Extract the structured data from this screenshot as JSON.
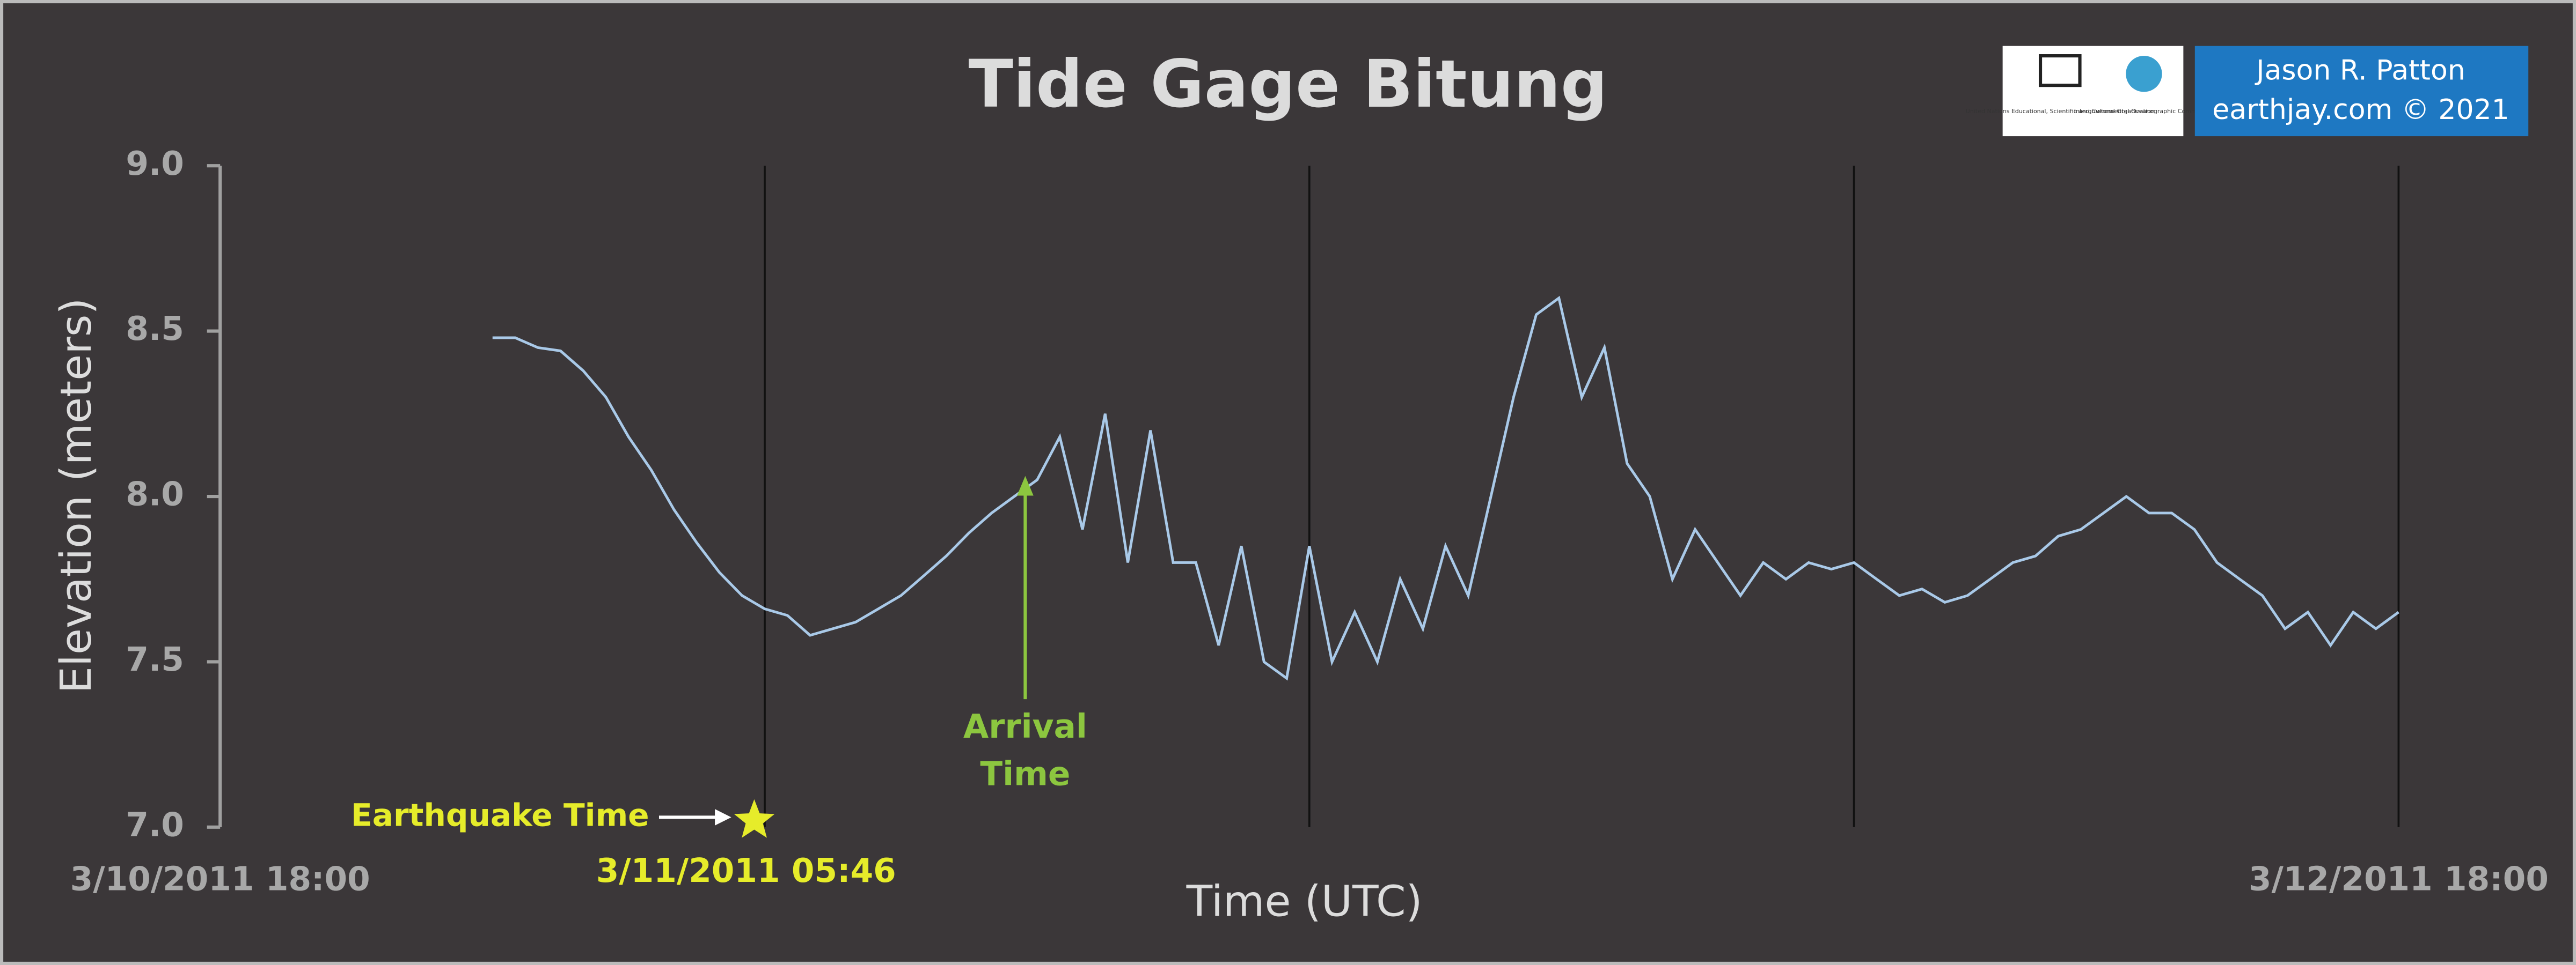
{
  "chart_data": {
    "type": "line",
    "title": "Tide Gage Bitung",
    "x_label": "Time (UTC)",
    "y_label": "Elevation (meters)",
    "xlim": [
      0,
      48
    ],
    "xticks": [
      {
        "value": 0,
        "label": "3/10/2011 18:00"
      },
      {
        "value": 48,
        "label": "3/12/2011 18:00"
      }
    ],
    "x_gridlines": [
      12,
      24,
      36,
      48
    ],
    "ylim": [
      7,
      9
    ],
    "yticks": [
      {
        "value": 9,
        "label": "9.0"
      },
      {
        "value": 8.5,
        "label": "8.5"
      },
      {
        "value": 8,
        "label": "8.0"
      },
      {
        "value": 7.5,
        "label": "7.5"
      },
      {
        "value": 7,
        "label": "7.0"
      }
    ],
    "color": "#a9c9e8",
    "x": [
      6,
      6.5,
      7,
      7.5,
      8,
      8.5,
      9,
      9.5,
      10,
      10.5,
      11,
      11.5,
      12,
      12.5,
      13,
      13.5,
      14,
      14.5,
      15,
      15.5,
      16,
      16.5,
      17,
      17.5,
      18,
      18.5,
      19,
      19.5,
      20,
      20.5,
      21,
      21.5,
      22,
      22.5,
      23,
      23.5,
      24,
      24.5,
      25,
      25.5,
      26,
      26.5,
      27,
      27.5,
      28,
      28.5,
      29,
      29.5,
      30,
      30.5,
      31,
      31.5,
      32,
      32.5,
      33,
      33.5,
      34,
      34.5,
      35,
      35.5,
      36,
      36.5,
      37,
      37.5,
      38,
      38.5,
      39,
      39.5,
      40,
      40.5,
      41,
      41.5,
      42,
      42.5,
      43,
      43.5,
      44,
      44.5,
      45,
      45.5,
      46,
      46.5,
      47,
      47.5,
      48
    ],
    "values": [
      8.48,
      8.48,
      8.45,
      8.44,
      8.38,
      8.3,
      8.18,
      8.08,
      7.96,
      7.86,
      7.77,
      7.7,
      7.66,
      7.64,
      7.58,
      7.6,
      7.62,
      7.66,
      7.7,
      7.76,
      7.82,
      7.89,
      7.95,
      8.0,
      8.05,
      8.18,
      7.9,
      8.25,
      7.8,
      8.2,
      7.8,
      7.8,
      7.55,
      7.85,
      7.5,
      7.45,
      7.85,
      7.5,
      7.65,
      7.5,
      7.75,
      7.6,
      7.85,
      7.7,
      8.0,
      8.3,
      8.55,
      8.6,
      8.3,
      8.45,
      8.1,
      8.0,
      7.75,
      7.9,
      7.8,
      7.7,
      7.8,
      7.75,
      7.8,
      7.78,
      7.8,
      7.75,
      7.7,
      7.72,
      7.68,
      7.7,
      7.75,
      7.8,
      7.82,
      7.88,
      7.9,
      7.95,
      8.0,
      7.95,
      7.95,
      7.9,
      7.8,
      7.75,
      7.7,
      7.6,
      7.65,
      7.55,
      7.65,
      7.6,
      7.65
    ],
    "earthquake": {
      "label": "Earthquake Time",
      "time": "3/11/2011 05:46",
      "x": 11.77
    },
    "arrival": {
      "label": [
        "Arrival",
        "Time"
      ],
      "x": 17.74
    },
    "credit": [
      "Jason R. Patton",
      "earthjay.com © 2021"
    ],
    "logos": [
      "United Nations Educational, Scientific and Cultural Organization",
      "Intergovernmental Oceanographic Commission"
    ]
  }
}
